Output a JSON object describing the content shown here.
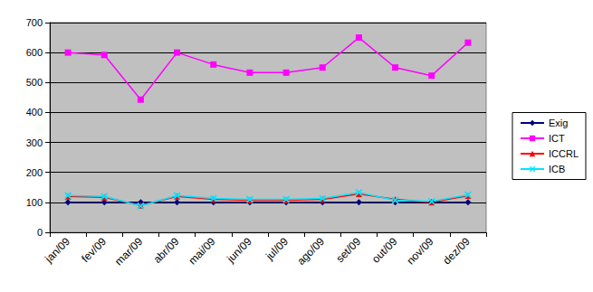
{
  "chart_data": {
    "type": "line",
    "categories": [
      "jan/09",
      "fev/09",
      "mar/09",
      "abr/09",
      "mai/09",
      "jun/09",
      "jul/09",
      "ago/09",
      "set/09",
      "out/09",
      "nov/09",
      "dez/09"
    ],
    "series": [
      {
        "name": "Exig",
        "color": "#000080",
        "marker": "diamond",
        "values": [
          100,
          100,
          100,
          100,
          100,
          100,
          100,
          100,
          100,
          100,
          100,
          100
        ]
      },
      {
        "name": "ICT",
        "color": "#ff00ff",
        "marker": "square",
        "values": [
          600,
          592,
          443,
          600,
          560,
          533,
          533,
          550,
          650,
          550,
          523,
          633
        ]
      },
      {
        "name": "ICCRL",
        "color": "#ff0000",
        "marker": "triangle",
        "values": [
          120,
          117,
          90,
          120,
          110,
          107,
          107,
          110,
          128,
          110,
          100,
          122
        ]
      },
      {
        "name": "ICB",
        "color": "#00e5ff",
        "marker": "x",
        "values": [
          123,
          120,
          88,
          123,
          113,
          110,
          110,
          113,
          133,
          107,
          103,
          125
        ]
      }
    ],
    "ylim": [
      0,
      700
    ],
    "yticks": [
      0,
      100,
      200,
      300,
      400,
      500,
      600,
      700
    ],
    "grid": true,
    "legend": "right"
  }
}
